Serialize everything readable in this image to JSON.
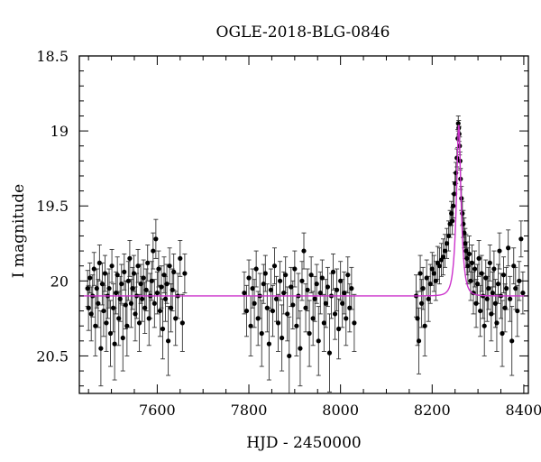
{
  "chart_data": {
    "type": "scatter",
    "title": "OGLE-2018-BLG-0846",
    "xlabel": "HJD - 2450000",
    "ylabel": "I magnitude",
    "xlim": [
      7430,
      8410
    ],
    "ylim": [
      20.75,
      18.5
    ],
    "y_inverted": true,
    "x_ticks": [
      7600,
      7800,
      8000,
      8200,
      8400
    ],
    "x_tick_labels": [
      "7600",
      "7800",
      "8000",
      "8200",
      "8400"
    ],
    "y_ticks": [
      18.5,
      19,
      19.5,
      20,
      20.5
    ],
    "y_tick_labels": [
      "18.5",
      "19",
      "19.5",
      "20",
      "20.5"
    ],
    "grid": false,
    "colors": {
      "points": "#000000",
      "model": "#cc33cc"
    },
    "series": [
      {
        "kind": "points_with_errorbars",
        "points": [
          [
            7448,
            20.05,
            0.12
          ],
          [
            7450,
            20.18,
            0.15
          ],
          [
            7453,
            19.98,
            0.1
          ],
          [
            7456,
            20.22,
            0.18
          ],
          [
            7459,
            20.1,
            0.14
          ],
          [
            7462,
            19.92,
            0.11
          ],
          [
            7465,
            20.3,
            0.2
          ],
          [
            7468,
            20.05,
            0.13
          ],
          [
            7471,
            20.15,
            0.16
          ],
          [
            7474,
            19.88,
            0.12
          ],
          [
            7477,
            20.45,
            0.25
          ],
          [
            7480,
            20.02,
            0.14
          ],
          [
            7483,
            20.2,
            0.17
          ],
          [
            7486,
            19.95,
            0.12
          ],
          [
            7489,
            20.28,
            0.19
          ],
          [
            7492,
            20.1,
            0.15
          ],
          [
            7495,
            20.05,
            0.13
          ],
          [
            7498,
            20.35,
            0.22
          ],
          [
            7501,
            19.9,
            0.11
          ],
          [
            7504,
            20.18,
            0.16
          ],
          [
            7507,
            20.42,
            0.24
          ],
          [
            7510,
            20.08,
            0.14
          ],
          [
            7513,
            19.96,
            0.12
          ],
          [
            7516,
            20.25,
            0.18
          ],
          [
            7519,
            20.12,
            0.15
          ],
          [
            7522,
            20.02,
            0.13
          ],
          [
            7525,
            20.38,
            0.22
          ],
          [
            7528,
            19.94,
            0.12
          ],
          [
            7531,
            20.16,
            0.16
          ],
          [
            7534,
            20.3,
            0.2
          ],
          [
            7537,
            20.0,
            0.13
          ],
          [
            7540,
            19.85,
            0.12
          ],
          [
            7543,
            20.15,
            0.16
          ],
          [
            7546,
            20.05,
            0.14
          ],
          [
            7549,
            19.95,
            0.12
          ],
          [
            7552,
            20.22,
            0.18
          ],
          [
            7555,
            20.1,
            0.15
          ],
          [
            7558,
            19.9,
            0.11
          ],
          [
            7561,
            20.28,
            0.19
          ],
          [
            7564,
            20.02,
            0.13
          ],
          [
            7567,
            20.12,
            0.15
          ],
          [
            7570,
            19.98,
            0.12
          ],
          [
            7573,
            20.18,
            0.17
          ],
          [
            7576,
            20.06,
            0.14
          ],
          [
            7579,
            19.88,
            0.12
          ],
          [
            7582,
            20.25,
            0.18
          ],
          [
            7585,
            20.1,
            0.15
          ],
          [
            7588,
            20.0,
            0.13
          ],
          [
            7591,
            19.8,
            0.12
          ],
          [
            7594,
            20.15,
            0.16
          ],
          [
            7597,
            19.72,
            0.13
          ],
          [
            7600,
            20.08,
            0.14
          ],
          [
            7603,
            19.92,
            0.12
          ],
          [
            7606,
            20.2,
            0.17
          ],
          [
            7609,
            20.04,
            0.14
          ],
          [
            7612,
            20.32,
            0.2
          ],
          [
            7615,
            19.96,
            0.12
          ],
          [
            7618,
            20.12,
            0.15
          ],
          [
            7621,
            20.02,
            0.13
          ],
          [
            7624,
            20.4,
            0.23
          ],
          [
            7627,
            19.9,
            0.12
          ],
          [
            7630,
            20.18,
            0.16
          ],
          [
            7633,
            20.06,
            0.14
          ],
          [
            7636,
            19.94,
            0.12
          ],
          [
            7640,
            20.25,
            0.18
          ],
          [
            7645,
            20.1,
            0.15
          ],
          [
            7650,
            19.85,
            0.12
          ],
          [
            7655,
            20.28,
            0.19
          ],
          [
            7660,
            19.95,
            0.13
          ],
          [
            7790,
            20.08,
            0.14
          ],
          [
            7795,
            20.2,
            0.17
          ],
          [
            7800,
            19.98,
            0.12
          ],
          [
            7804,
            20.3,
            0.2
          ],
          [
            7808,
            20.05,
            0.13
          ],
          [
            7812,
            20.15,
            0.16
          ],
          [
            7816,
            19.92,
            0.12
          ],
          [
            7820,
            20.25,
            0.18
          ],
          [
            7824,
            20.1,
            0.15
          ],
          [
            7828,
            20.35,
            0.22
          ],
          [
            7832,
            20.02,
            0.13
          ],
          [
            7836,
            19.95,
            0.12
          ],
          [
            7840,
            20.18,
            0.16
          ],
          [
            7844,
            20.42,
            0.24
          ],
          [
            7848,
            20.06,
            0.14
          ],
          [
            7852,
            20.2,
            0.17
          ],
          [
            7856,
            19.9,
            0.12
          ],
          [
            7860,
            20.12,
            0.15
          ],
          [
            7864,
            20.28,
            0.19
          ],
          [
            7868,
            20.0,
            0.13
          ],
          [
            7872,
            20.38,
            0.22
          ],
          [
            7876,
            20.08,
            0.14
          ],
          [
            7880,
            19.96,
            0.12
          ],
          [
            7884,
            20.22,
            0.18
          ],
          [
            7888,
            20.5,
            0.26
          ],
          [
            7892,
            20.04,
            0.13
          ],
          [
            7896,
            20.16,
            0.16
          ],
          [
            7900,
            19.92,
            0.12
          ],
          [
            7904,
            20.3,
            0.2
          ],
          [
            7908,
            20.1,
            0.15
          ],
          [
            7912,
            20.45,
            0.25
          ],
          [
            7916,
            20.0,
            0.13
          ],
          [
            7920,
            19.8,
            0.12
          ],
          [
            7924,
            20.18,
            0.16
          ],
          [
            7928,
            20.06,
            0.14
          ],
          [
            7932,
            20.35,
            0.22
          ],
          [
            7936,
            19.96,
            0.12
          ],
          [
            7940,
            20.25,
            0.18
          ],
          [
            7944,
            20.12,
            0.15
          ],
          [
            7948,
            20.02,
            0.13
          ],
          [
            7952,
            20.4,
            0.23
          ],
          [
            7956,
            20.08,
            0.14
          ],
          [
            7960,
            19.98,
            0.12
          ],
          [
            7964,
            20.28,
            0.19
          ],
          [
            7968,
            20.15,
            0.16
          ],
          [
            7972,
            20.04,
            0.13
          ],
          [
            7976,
            20.48,
            0.26
          ],
          [
            7980,
            20.1,
            0.15
          ],
          [
            7984,
            19.94,
            0.12
          ],
          [
            7988,
            20.22,
            0.17
          ],
          [
            7992,
            20.06,
            0.14
          ],
          [
            7996,
            20.32,
            0.2
          ],
          [
            8000,
            20.0,
            0.13
          ],
          [
            8004,
            20.15,
            0.16
          ],
          [
            8008,
            20.08,
            0.14
          ],
          [
            8012,
            20.25,
            0.18
          ],
          [
            8016,
            19.96,
            0.12
          ],
          [
            8020,
            20.18,
            0.16
          ],
          [
            8024,
            20.05,
            0.14
          ],
          [
            8030,
            20.28,
            0.19
          ],
          [
            8165,
            20.1,
            0.14
          ],
          [
            8168,
            20.25,
            0.18
          ],
          [
            8171,
            20.4,
            0.22
          ],
          [
            8174,
            19.95,
            0.12
          ],
          [
            8177,
            20.15,
            0.16
          ],
          [
            8180,
            20.05,
            0.14
          ],
          [
            8184,
            20.3,
            0.2
          ],
          [
            8188,
            19.98,
            0.12
          ],
          [
            8192,
            20.12,
            0.15
          ],
          [
            8196,
            20.02,
            0.13
          ],
          [
            8200,
            19.92,
            0.11
          ],
          [
            8204,
            19.95,
            0.12
          ],
          [
            8208,
            20.0,
            0.13
          ],
          [
            8212,
            19.88,
            0.11
          ],
          [
            8216,
            19.9,
            0.12
          ],
          [
            8220,
            19.86,
            0.11
          ],
          [
            8224,
            19.84,
            0.12
          ],
          [
            8228,
            19.8,
            0.11
          ],
          [
            8232,
            19.75,
            0.1
          ],
          [
            8236,
            19.7,
            0.1
          ],
          [
            8239,
            19.62,
            0.09
          ],
          [
            8242,
            19.55,
            0.08
          ],
          [
            8244,
            19.6,
            0.09
          ],
          [
            8246,
            19.5,
            0.08
          ],
          [
            8248,
            19.42,
            0.08
          ],
          [
            8250,
            19.35,
            0.07
          ],
          [
            8252,
            19.28,
            0.07
          ],
          [
            8254,
            19.18,
            0.06
          ],
          [
            8256,
            19.05,
            0.06
          ],
          [
            8257,
            18.95,
            0.05
          ],
          [
            8258,
            18.98,
            0.05
          ],
          [
            8259,
            19.02,
            0.05
          ],
          [
            8260,
            19.1,
            0.06
          ],
          [
            8261,
            19.2,
            0.06
          ],
          [
            8262,
            19.32,
            0.07
          ],
          [
            8264,
            19.45,
            0.08
          ],
          [
            8266,
            19.55,
            0.08
          ],
          [
            8268,
            19.62,
            0.09
          ],
          [
            8270,
            19.68,
            0.1
          ],
          [
            8272,
            19.75,
            0.1
          ],
          [
            8274,
            19.8,
            0.11
          ],
          [
            8276,
            19.85,
            0.11
          ],
          [
            8278,
            19.9,
            0.12
          ],
          [
            8281,
            19.82,
            0.12
          ],
          [
            8284,
            20.0,
            0.13
          ],
          [
            8287,
            19.88,
            0.12
          ],
          [
            8290,
            20.08,
            0.14
          ],
          [
            8293,
            19.92,
            0.12
          ],
          [
            8296,
            20.15,
            0.16
          ],
          [
            8299,
            20.02,
            0.13
          ],
          [
            8302,
            19.85,
            0.12
          ],
          [
            8305,
            20.2,
            0.17
          ],
          [
            8308,
            19.95,
            0.12
          ],
          [
            8311,
            20.1,
            0.15
          ],
          [
            8314,
            20.3,
            0.2
          ],
          [
            8317,
            19.98,
            0.12
          ],
          [
            8320,
            20.12,
            0.15
          ],
          [
            8323,
            20.05,
            0.14
          ],
          [
            8326,
            19.88,
            0.12
          ],
          [
            8329,
            20.22,
            0.18
          ],
          [
            8332,
            20.08,
            0.14
          ],
          [
            8335,
            19.92,
            0.12
          ],
          [
            8338,
            20.15,
            0.16
          ],
          [
            8341,
            20.28,
            0.19
          ],
          [
            8344,
            20.02,
            0.13
          ],
          [
            8347,
            19.8,
            0.12
          ],
          [
            8350,
            20.1,
            0.15
          ],
          [
            8353,
            20.35,
            0.22
          ],
          [
            8356,
            19.96,
            0.12
          ],
          [
            8359,
            20.18,
            0.16
          ],
          [
            8362,
            20.05,
            0.14
          ],
          [
            8366,
            19.78,
            0.12
          ],
          [
            8370,
            20.12,
            0.15
          ],
          [
            8374,
            20.4,
            0.23
          ],
          [
            8378,
            19.9,
            0.12
          ],
          [
            8382,
            20.05,
            0.14
          ],
          [
            8386,
            20.2,
            0.17
          ],
          [
            8390,
            20.0,
            0.13
          ],
          [
            8394,
            19.72,
            0.12
          ],
          [
            8398,
            20.08,
            0.14
          ]
        ]
      },
      {
        "kind": "model_curve",
        "baseline": 20.1,
        "peak_mag": 18.96,
        "t0": 8258,
        "tE": 10,
        "t_range": [
          7430,
          8410
        ]
      }
    ]
  }
}
